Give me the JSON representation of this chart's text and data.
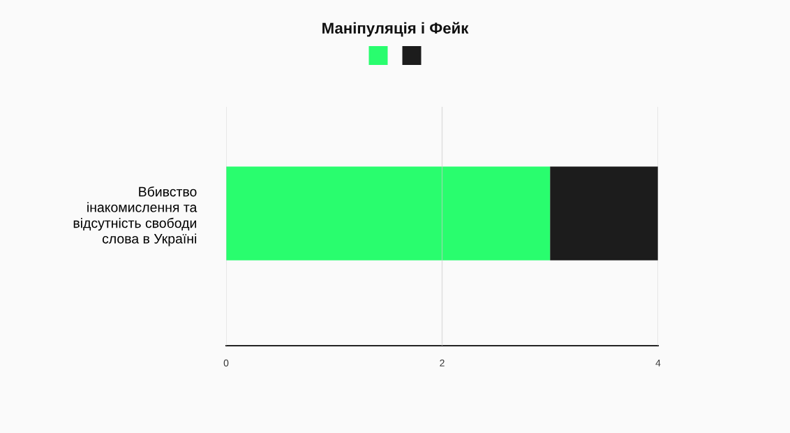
{
  "chart_data": {
    "type": "bar",
    "orientation": "horizontal",
    "stacked": true,
    "title": "Маніпуляція і Фейк",
    "categories": [
      "Вбивство інакомислення та відсутність свободи слова в Україні"
    ],
    "series": [
      {
        "color": "#29fd6e",
        "values": [
          3
        ]
      },
      {
        "color": "#1c1c1c",
        "values": [
          1
        ]
      }
    ],
    "xlim": [
      0,
      4
    ],
    "xticks": [
      0,
      2,
      4
    ],
    "grid": "x"
  }
}
